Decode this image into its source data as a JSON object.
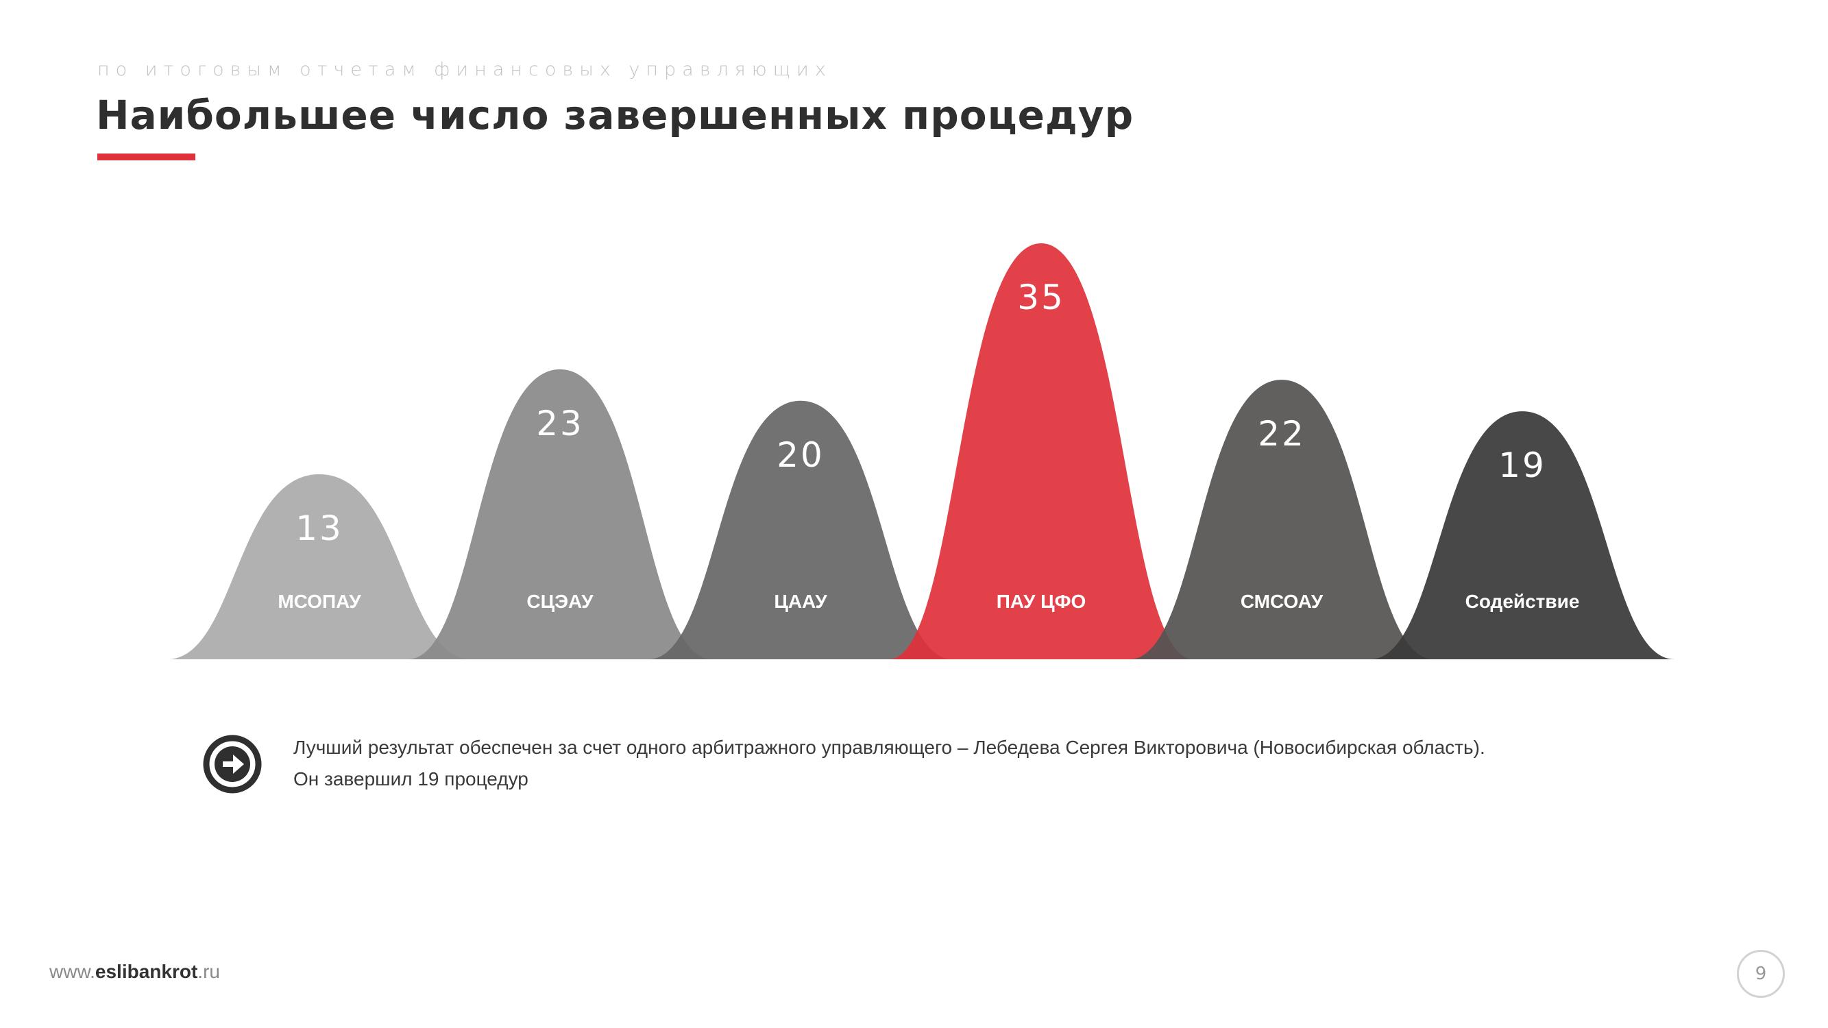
{
  "header": {
    "subtitle": "по итоговым отчетам финансовых управляющих",
    "title": "Наибольшее число завершенных процедур"
  },
  "chart_data": {
    "type": "area",
    "categories": [
      "МСОПАУ",
      "СЦЭАУ",
      "ЦААУ",
      "ПАУ ЦФО",
      "СМСОАУ",
      "Содействие"
    ],
    "values": [
      13,
      23,
      20,
      35,
      22,
      19
    ],
    "colors": [
      "#ababab",
      "#8a8a8a",
      "#686767",
      "#e0313b",
      "#555453",
      "#3b3a3a"
    ],
    "highlight": "ПАУ ЦФО"
  },
  "note": {
    "line1": "Лучший результат обеспечен за счет одного арбитражного управляющего – Лебедева Сергея Викторовича (Новосибирская область).",
    "line2": "Он завершил 19 процедур",
    "icon": "arrow-right-circle-icon"
  },
  "footer": {
    "site_prefix": "www.",
    "site_brand": "eslibankrot",
    "site_suffix": ".ru",
    "page_number": "9"
  }
}
